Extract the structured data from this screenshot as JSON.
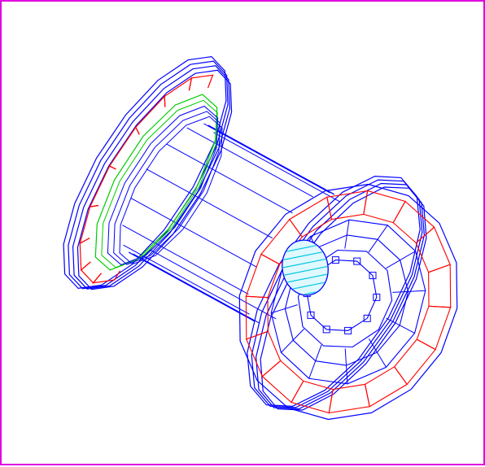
{
  "viewer": {
    "frame_color": "#e000e0",
    "background_color": "#ffffff"
  },
  "detector": {
    "colors": {
      "outline": "#0000ff",
      "calorimeter": "#ff0000",
      "inner_ring": "#00cc00",
      "beam_pipe": "#00c8e0",
      "beam_pipe_fill": "#e0f8ff"
    },
    "outer_segments": 16,
    "mid_segments": 12,
    "inner_segments": 10,
    "barrel_staves": 14,
    "beam_pipe_hatch_lines": 8
  }
}
